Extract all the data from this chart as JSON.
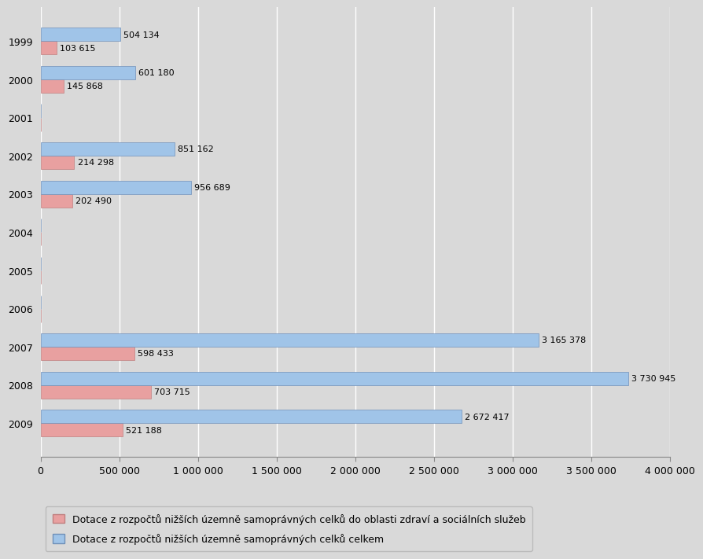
{
  "years": [
    1999,
    2000,
    2001,
    2002,
    2003,
    2004,
    2005,
    2006,
    2007,
    2008,
    2009
  ],
  "health_social": [
    103615,
    145868,
    0,
    214298,
    202490,
    0,
    0,
    0,
    598433,
    703715,
    521188
  ],
  "total": [
    504134,
    601180,
    0,
    851162,
    956689,
    0,
    0,
    0,
    3165378,
    3730945,
    2672417
  ],
  "bar_color_health": "#E8A0A0",
  "bar_color_total": "#A0C4E8",
  "background_color": "#D9D9D9",
  "plot_bg_color": "#D9D9D9",
  "label_health": "Dotace z rozpočtů nižších územně samoprávných celků do oblasti zdraví a sociálních služeb",
  "label_total": "Dotace z rozpočtů nižších územně samoprávných celků celkem",
  "xlim": [
    0,
    4000000
  ],
  "xticks": [
    0,
    500000,
    1000000,
    1500000,
    2000000,
    2500000,
    3000000,
    3500000,
    4000000
  ],
  "xtick_labels": [
    "0",
    "500 000",
    "1 000 000",
    "1 500 000",
    "2 000 000",
    "2 500 000",
    "3 000 000",
    "3 500 000",
    "4 000 000"
  ],
  "bar_height": 0.35,
  "tick_fontsize": 9,
  "legend_fontsize": 9,
  "value_fontsize": 8
}
